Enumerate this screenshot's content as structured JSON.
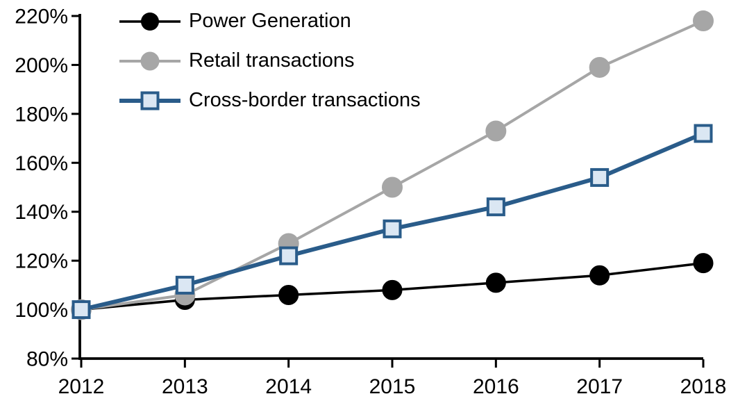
{
  "page": {
    "background_color": "#ffffff",
    "axis_color": "#000000"
  },
  "chart_data": {
    "type": "line",
    "title": "",
    "xlabel": "",
    "ylabel": "",
    "x": [
      2012,
      2013,
      2014,
      2015,
      2016,
      2017,
      2018
    ],
    "xtick_labels": [
      "2012",
      "2013",
      "2014",
      "2015",
      "2016",
      "2017",
      "2018"
    ],
    "ylim": [
      80,
      220
    ],
    "ytick_step": 20,
    "ytick_labels": [
      "80%",
      "100%",
      "120%",
      "140%",
      "160%",
      "180%",
      "200%",
      "220%"
    ],
    "y_format": "percent",
    "grid": false,
    "legend_position": "top-left",
    "series": [
      {
        "name": "Power Generation",
        "line_color": "#000000",
        "line_width": 3.5,
        "marker": "circle",
        "marker_fill": "#000000",
        "marker_stroke": "#000000",
        "marker_size": 28,
        "values": [
          100,
          104,
          106,
          108,
          111,
          114,
          119
        ]
      },
      {
        "name": "Retail transactions",
        "line_color": "#a6a6a6",
        "line_width": 4,
        "marker": "circle",
        "marker_fill": "#a6a6a6",
        "marker_stroke": "#a6a6a6",
        "marker_size": 29,
        "values": [
          100,
          106,
          127,
          150,
          173,
          199,
          218
        ]
      },
      {
        "name": "Cross-border transactions",
        "line_color": "#2a5c8a",
        "line_width": 6,
        "marker": "square",
        "marker_fill": "#dbe7f3",
        "marker_stroke": "#2a5c8a",
        "marker_size": 27,
        "values": [
          100,
          110,
          122,
          133,
          142,
          154,
          172
        ]
      }
    ]
  }
}
